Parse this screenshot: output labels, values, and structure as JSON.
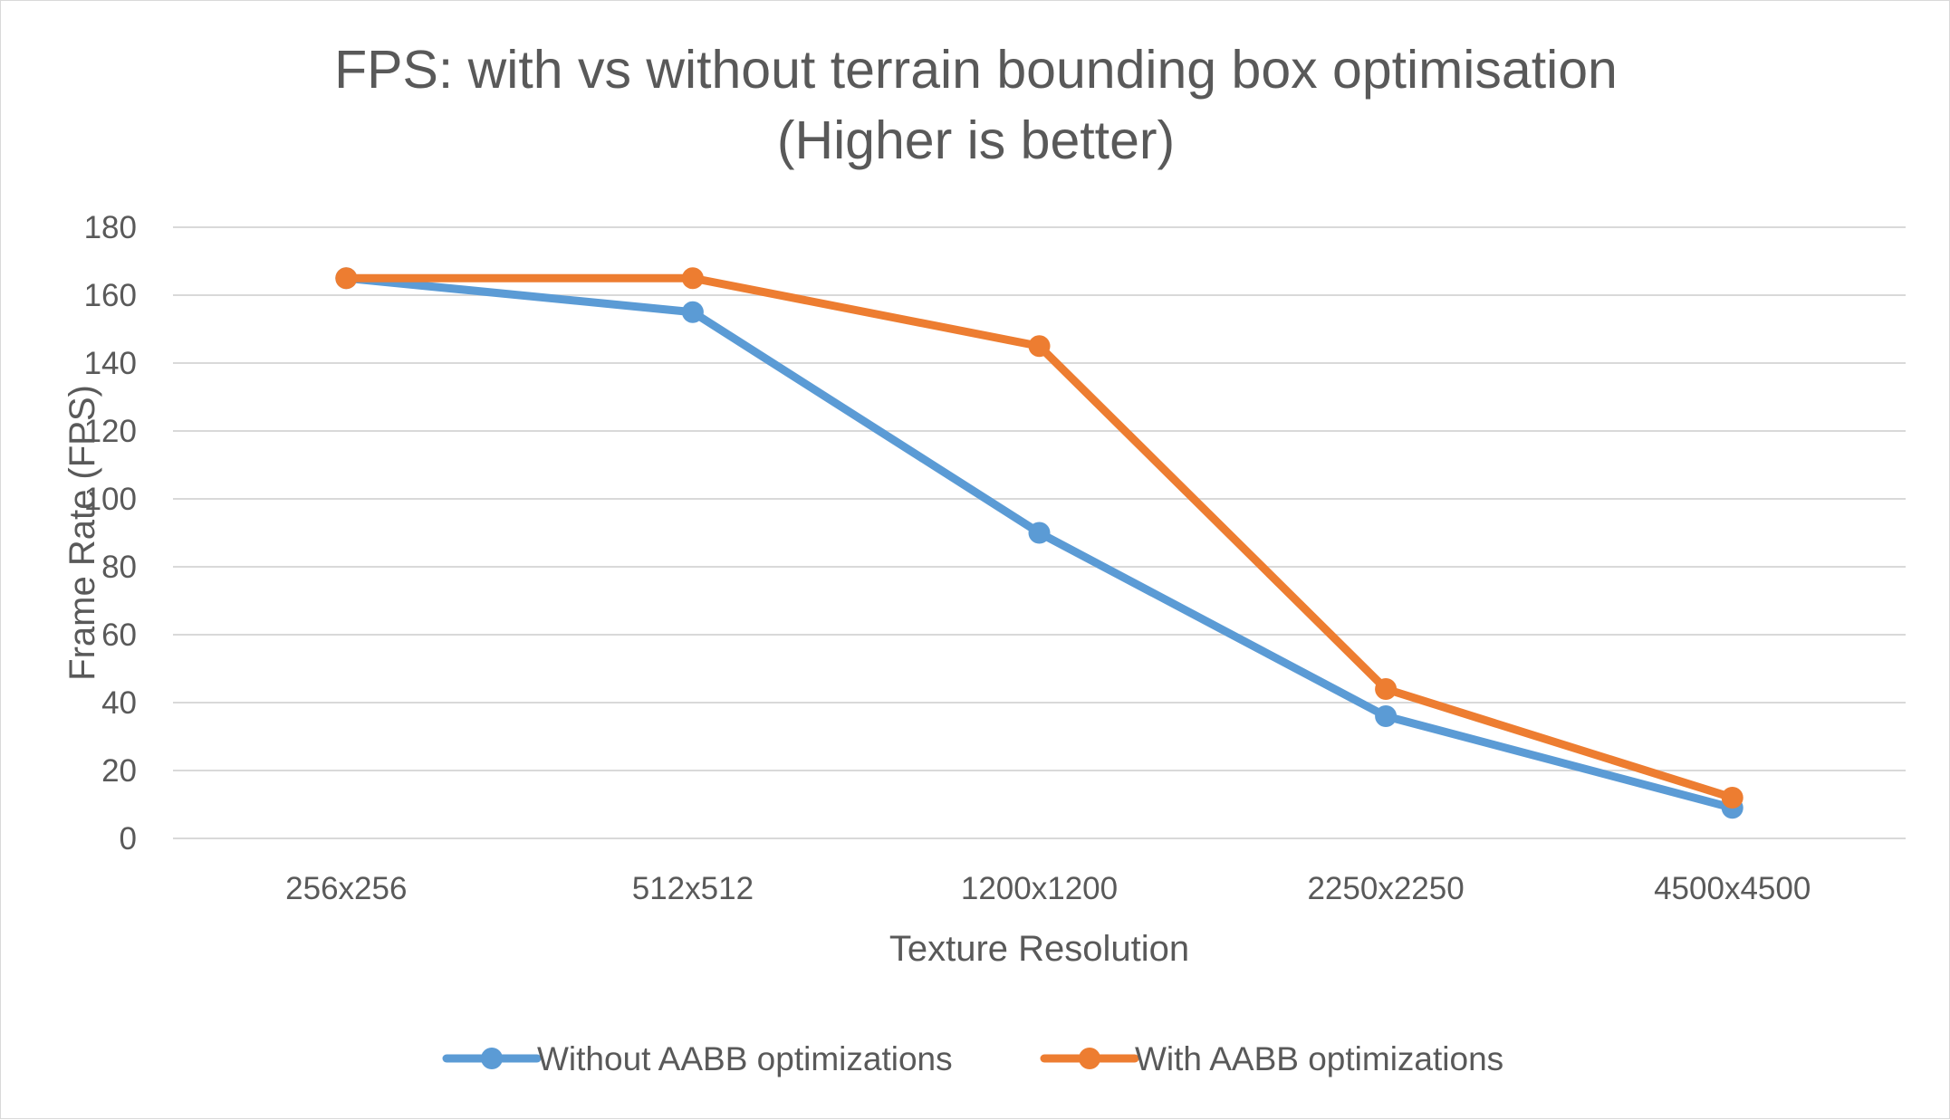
{
  "chart_data": {
    "type": "line",
    "title_lines": [
      "FPS: with vs without terrain bounding box optimisation",
      "(Higher is better)"
    ],
    "xlabel": "Texture Resolution",
    "ylabel": "Frame Rate (FPS)",
    "categories": [
      "256x256",
      "512x512",
      "1200x1200",
      "2250x2250",
      "4500x4500"
    ],
    "ylim": [
      0,
      180
    ],
    "yticks": [
      0,
      20,
      40,
      60,
      80,
      100,
      120,
      140,
      160,
      180
    ],
    "grid": true,
    "legend_position": "bottom",
    "series": [
      {
        "name": "Without AABB optimizations",
        "color": "#5b9bd5",
        "values": [
          165,
          155,
          90,
          36,
          9
        ]
      },
      {
        "name": "With AABB optimizations",
        "color": "#ed7d31",
        "values": [
          165,
          165,
          145,
          44,
          12
        ]
      }
    ]
  }
}
